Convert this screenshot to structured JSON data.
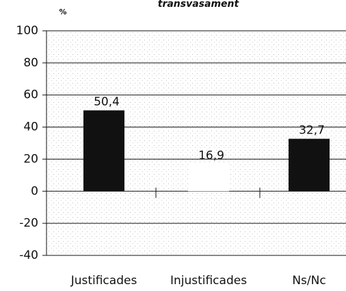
{
  "chart_data": {
    "type": "bar",
    "title": "transvasament",
    "y_label": "%",
    "categories": [
      "Justificades",
      "Injustificades",
      "Ns/Nc"
    ],
    "values": [
      50.4,
      16.9,
      32.7
    ],
    "value_labels": [
      "50,4",
      "16,9",
      "32,7"
    ],
    "colors": [
      "#111111",
      "#ffffff",
      "#111111"
    ],
    "ylim": [
      -40,
      100
    ],
    "yticks": [
      -40,
      -20,
      0,
      20,
      40,
      60,
      80,
      100
    ],
    "grid": true
  }
}
